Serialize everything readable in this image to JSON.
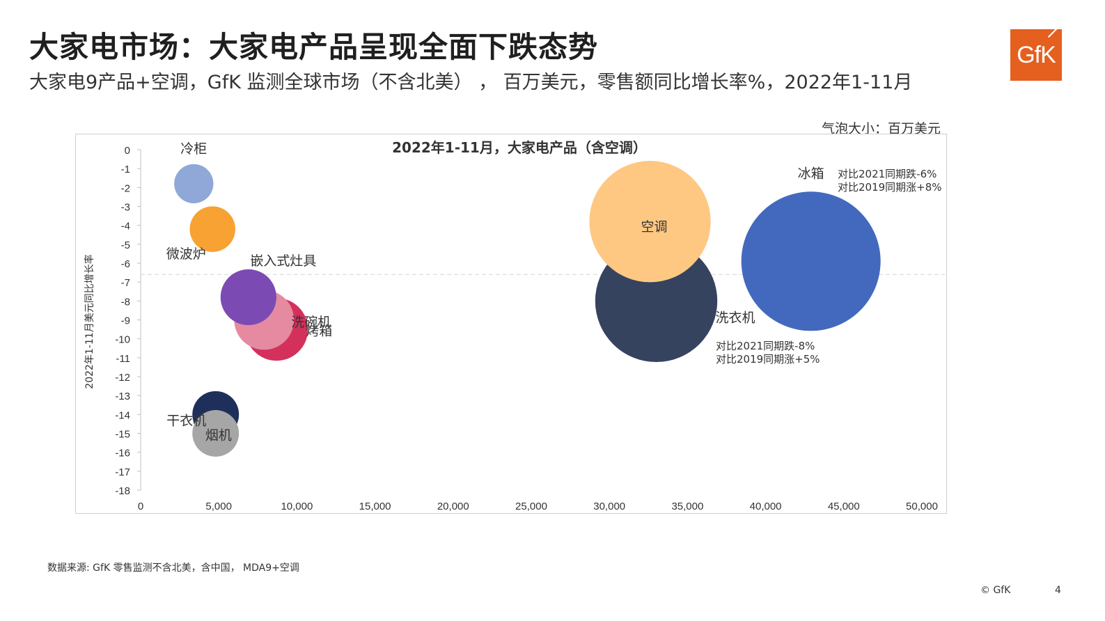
{
  "page": {
    "title": "大家电市场：大家电产品呈现全面下跌态势",
    "subtitle": "大家电9产品+空调，GfK 监测全球市场（不含北美） ，  百万美元，零售额同比增长率%，2022年1-11月",
    "logo_text": "GfK",
    "bubble_size_note": "气泡大小：百万美元",
    "source": "数据来源: GfK 零售监测不含北美，含中国，   MDA9+空调",
    "copyright": "© GfK",
    "page_number": "4"
  },
  "chart_data": {
    "type": "scatter",
    "title": "2022年1-11月，大家电产品（含空调）",
    "xlabel": "",
    "ylabel": "2022年1-11月美元同比增长率",
    "xlim": [
      0,
      50000
    ],
    "ylim": [
      -18,
      0
    ],
    "x_ticks": [
      "0",
      "5,000",
      "10,000",
      "15,000",
      "20,000",
      "25,000",
      "30,000",
      "35,000",
      "40,000",
      "45,000",
      "50,000"
    ],
    "y_ticks": [
      "0",
      "-1",
      "-2",
      "-3",
      "-4",
      "-5",
      "-6",
      "-7",
      "-8",
      "-9",
      "-10",
      "-11",
      "-12",
      "-13",
      "-14",
      "-15",
      "-16",
      "-17",
      "-18"
    ],
    "average_line_y": -6.6,
    "points": [
      {
        "label": "冷柜",
        "x": 3400,
        "y": -1.8,
        "size": 3400,
        "color": "#8fa8d8"
      },
      {
        "label": "微波炉",
        "x": 4600,
        "y": -4.2,
        "size": 4600,
        "color": "#f7a233"
      },
      {
        "label": "烤箱",
        "x": 7900,
        "y": -9.0,
        "size": 7900,
        "color": "#e58aa1"
      },
      {
        "label": "洗碗机",
        "x": 8700,
        "y": -9.5,
        "size": 8700,
        "color": "#d4305c"
      },
      {
        "label": "嵌入式灶具",
        "x": 6900,
        "y": -7.8,
        "size": 6900,
        "color": "#7b4bb3"
      },
      {
        "label": "干衣机",
        "x": 4800,
        "y": -14.0,
        "size": 4800,
        "color": "#1f2f5c"
      },
      {
        "label": "烟机",
        "x": 4800,
        "y": -15.0,
        "size": 4800,
        "color": "#a6a6a6"
      },
      {
        "label": "洗衣机",
        "x": 33000,
        "y": -8.0,
        "size": 33000,
        "color": "#36435f"
      },
      {
        "label": "冰箱",
        "x": 42900,
        "y": -5.9,
        "size": 42900,
        "color": "#4369bf"
      },
      {
        "label": "空调",
        "x": 32600,
        "y": -3.8,
        "size": 32600,
        "color": "#fec882"
      }
    ],
    "annotations": [
      {
        "target": "冰箱",
        "lines": [
          "对比2021同期跌-6%",
          "对比2019同期涨+8%"
        ]
      },
      {
        "target": "洗衣机",
        "lines": [
          "对比2021同期跌-8%",
          "对比2019同期涨+5%"
        ]
      }
    ]
  }
}
